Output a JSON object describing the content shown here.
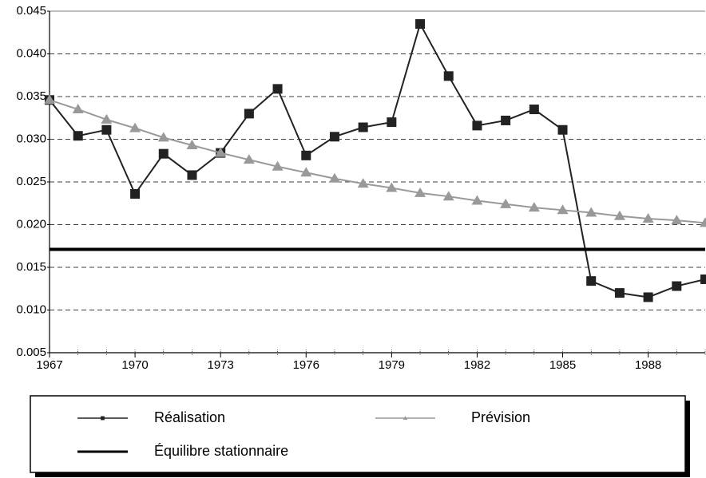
{
  "chart_data": {
    "type": "line",
    "x": [
      1967,
      1968,
      1969,
      1970,
      1971,
      1972,
      1973,
      1974,
      1975,
      1976,
      1977,
      1978,
      1979,
      1980,
      1981,
      1982,
      1983,
      1984,
      1985,
      1986,
      1987,
      1988,
      1989,
      1990
    ],
    "series": [
      {
        "name": "Réalisation",
        "color": "#222222",
        "marker": "square",
        "values": [
          0.0346,
          0.0304,
          0.0311,
          0.0236,
          0.0283,
          0.0258,
          0.0284,
          0.033,
          0.0359,
          0.0281,
          0.0303,
          0.0314,
          0.032,
          0.0435,
          0.0374,
          0.0316,
          0.0322,
          0.0335,
          0.0311,
          0.0134,
          0.012,
          0.0115,
          0.0128,
          0.0136
        ]
      },
      {
        "name": "Prévision",
        "color": "#999999",
        "marker": "triangle",
        "values": [
          0.0346,
          0.0335,
          0.0323,
          0.0313,
          0.0302,
          0.0293,
          0.0284,
          0.0276,
          0.0268,
          0.0261,
          0.0254,
          0.0248,
          0.0243,
          0.0237,
          0.0233,
          0.0228,
          0.0224,
          0.022,
          0.0217,
          0.0214,
          0.021,
          0.0207,
          0.0205,
          0.0202
        ]
      },
      {
        "name": "Équilibre stationnaire",
        "color": "#000000",
        "marker": "none",
        "level": 0.0171
      }
    ],
    "xlim": [
      1967,
      1990
    ],
    "xticks": [
      1967,
      1970,
      1973,
      1976,
      1979,
      1982,
      1985,
      1988
    ],
    "ylim": [
      0.005,
      0.045
    ],
    "yticks": [
      0.005,
      {
        "value": 0.01,
        "label": "0.010"
      },
      0.015,
      {
        "value": 0.02,
        "label": "0.020"
      },
      0.025,
      {
        "value": 0.03,
        "label": "0.030"
      },
      0.035,
      {
        "value": 0.04,
        "label": "0.040"
      },
      0.045
    ],
    "grid": true
  }
}
